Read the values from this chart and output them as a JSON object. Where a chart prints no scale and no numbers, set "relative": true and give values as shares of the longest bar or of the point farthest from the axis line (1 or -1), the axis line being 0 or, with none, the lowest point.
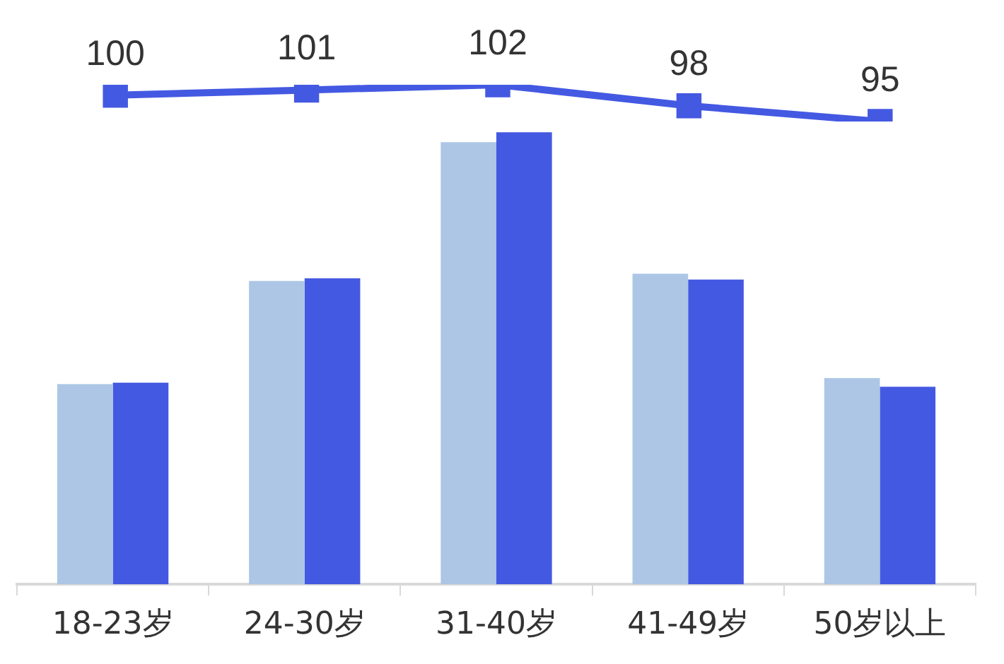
{
  "chart_data": [
    {
      "type": "bar",
      "relative": true,
      "categories": [
        "18-23岁",
        "24-30岁",
        "31-40岁",
        "41-49岁",
        "50岁以上"
      ],
      "series": [
        {
          "color": "#adc6e5",
          "values": [
            0.443,
            0.671,
            0.978,
            0.687,
            0.456
          ]
        },
        {
          "color": "#4459e2",
          "values": [
            0.446,
            0.677,
            1,
            0.674,
            0.437
          ]
        }
      ],
      "tick_labels": "x",
      "grid": false,
      "legend": false
    },
    {
      "type": "line",
      "categories": [
        null,
        null,
        null,
        null,
        null
      ],
      "series": [
        {
          "color": "#4459e2",
          "values": [
            100,
            101,
            102,
            98,
            95
          ]
        }
      ],
      "data_labels": true,
      "marker": "square",
      "tick_labels": false,
      "grid": false,
      "legend": false
    }
  ]
}
